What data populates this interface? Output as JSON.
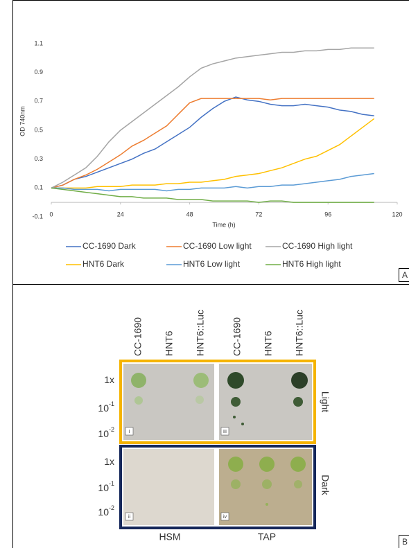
{
  "chart_data": {
    "type": "line",
    "x_label": "Time (h)",
    "y_label": "OD 740nm",
    "x": [
      0,
      4,
      8,
      12,
      16,
      20,
      24,
      28,
      32,
      36,
      40,
      44,
      48,
      52,
      56,
      60,
      64,
      68,
      72,
      76,
      80,
      84,
      88,
      92,
      96,
      100,
      104,
      108,
      112
    ],
    "xlim": [
      0,
      120
    ],
    "xticks": [
      0,
      24,
      48,
      72,
      96,
      120
    ],
    "ylim": [
      -0.1,
      1.1
    ],
    "yticks": [
      -0.1,
      0.1,
      0.3,
      0.5,
      0.7,
      0.9,
      1.1
    ],
    "series": [
      {
        "name": "CC-1690 Dark",
        "color": "#4472c4",
        "values": [
          0.1,
          0.12,
          0.16,
          0.18,
          0.21,
          0.24,
          0.27,
          0.3,
          0.34,
          0.37,
          0.42,
          0.47,
          0.52,
          0.59,
          0.65,
          0.7,
          0.73,
          0.71,
          0.7,
          0.68,
          0.67,
          0.67,
          0.68,
          0.67,
          0.66,
          0.64,
          0.63,
          0.61,
          0.6
        ]
      },
      {
        "name": "CC-1690 Low light",
        "color": "#ed7d31",
        "values": [
          0.1,
          0.12,
          0.16,
          0.19,
          0.23,
          0.28,
          0.33,
          0.39,
          0.43,
          0.48,
          0.53,
          0.61,
          0.69,
          0.72,
          0.72,
          0.72,
          0.72,
          0.72,
          0.72,
          0.71,
          0.72,
          0.72,
          0.72,
          0.72,
          0.72,
          0.72,
          0.72,
          0.72,
          0.72
        ]
      },
      {
        "name": "CC-1690 High light",
        "color": "#a5a5a5",
        "values": [
          0.1,
          0.14,
          0.19,
          0.24,
          0.32,
          0.42,
          0.5,
          0.56,
          0.62,
          0.68,
          0.74,
          0.8,
          0.87,
          0.93,
          0.96,
          0.98,
          1.0,
          1.01,
          1.02,
          1.03,
          1.04,
          1.04,
          1.05,
          1.05,
          1.06,
          1.06,
          1.07,
          1.07,
          1.07
        ]
      },
      {
        "name": "HNT6 Dark",
        "color": "#ffc000",
        "values": [
          0.1,
          0.1,
          0.1,
          0.1,
          0.11,
          0.11,
          0.11,
          0.12,
          0.12,
          0.12,
          0.13,
          0.13,
          0.14,
          0.14,
          0.15,
          0.16,
          0.18,
          0.19,
          0.2,
          0.22,
          0.24,
          0.27,
          0.3,
          0.32,
          0.36,
          0.4,
          0.46,
          0.52,
          0.58
        ]
      },
      {
        "name": "HNT6 Low light",
        "color": "#5b9bd5",
        "values": [
          0.1,
          0.1,
          0.09,
          0.09,
          0.09,
          0.08,
          0.09,
          0.09,
          0.09,
          0.09,
          0.08,
          0.09,
          0.09,
          0.1,
          0.1,
          0.1,
          0.11,
          0.1,
          0.11,
          0.11,
          0.12,
          0.12,
          0.13,
          0.14,
          0.15,
          0.16,
          0.18,
          0.19,
          0.2
        ]
      },
      {
        "name": "HNT6 High light",
        "color": "#70ad47",
        "values": [
          0.1,
          0.09,
          0.08,
          0.07,
          0.06,
          0.05,
          0.04,
          0.04,
          0.03,
          0.03,
          0.03,
          0.02,
          0.02,
          0.02,
          0.01,
          0.01,
          0.01,
          0.01,
          0.0,
          0.01,
          0.01,
          0.0,
          0.0,
          0.0,
          0.0,
          0.0,
          0.0,
          0.0,
          0.0
        ]
      }
    ],
    "legend": "bottom",
    "panel": "A"
  },
  "panel_b": {
    "panel": "B",
    "columns": [
      "CC-1690",
      "HNT6",
      "HNT6::Luc",
      "CC-1690",
      "HNT6",
      "HNT6::Luc"
    ],
    "rows": [
      {
        "base": "1x"
      },
      {
        "base": "10",
        "sup": "-1"
      },
      {
        "base": "10",
        "sup": "-2"
      }
    ],
    "conditions": [
      "Light",
      "Dark"
    ],
    "media": [
      "HSM",
      "TAP"
    ],
    "plates": [
      "i",
      "iii",
      "ii",
      "iv"
    ]
  }
}
